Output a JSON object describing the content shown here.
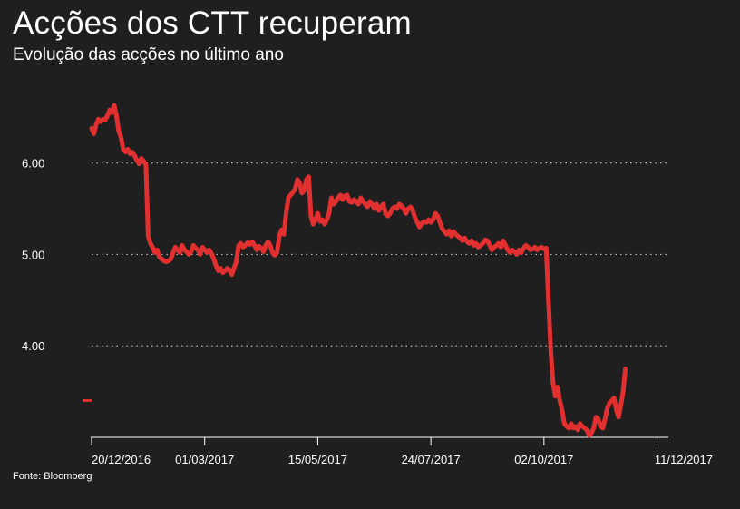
{
  "chart_data": {
    "type": "line",
    "title": "Acções dos CTT recuperam",
    "subtitle": "Evolução das acções no último ano",
    "source": "Fonte: Bloomberg",
    "ylim": [
      3.0,
      6.85
    ],
    "yticks": [
      {
        "value": 4.0,
        "label": "4.00"
      },
      {
        "value": 5.0,
        "label": "5.00"
      },
      {
        "value": 6.0,
        "label": "6.00"
      }
    ],
    "xticks": [
      {
        "index": 0,
        "label": "20/12/2016"
      },
      {
        "index": 50,
        "label": "01/03/2017"
      },
      {
        "index": 100,
        "label": "15/05/2017"
      },
      {
        "index": 150,
        "label": "24/07/2017"
      },
      {
        "index": 200,
        "label": "02/10/2017"
      },
      {
        "index": 250,
        "label": "11/12/2017"
      }
    ],
    "x_index_max": 255,
    "last_value": 3.75,
    "grid": true,
    "colors": {
      "line": "#e23030",
      "background": "#1f1f1f",
      "text": "#ffffff",
      "grid": "#bdbdbd"
    },
    "series": [
      {
        "points": [
          [
            0,
            6.38
          ],
          [
            1,
            6.32
          ],
          [
            2,
            6.42
          ],
          [
            3,
            6.48
          ],
          [
            4,
            6.45
          ],
          [
            5,
            6.48
          ],
          [
            6,
            6.47
          ],
          [
            7,
            6.52
          ],
          [
            8,
            6.58
          ],
          [
            9,
            6.55
          ],
          [
            10,
            6.63
          ],
          [
            11,
            6.52
          ],
          [
            12,
            6.35
          ],
          [
            13,
            6.28
          ],
          [
            14,
            6.15
          ],
          [
            15,
            6.12
          ],
          [
            16,
            6.15
          ],
          [
            17,
            6.1
          ],
          [
            18,
            6.12
          ],
          [
            19,
            6.08
          ],
          [
            20,
            6.03
          ],
          [
            21,
            5.99
          ],
          [
            22,
            6.05
          ],
          [
            23,
            6.02
          ],
          [
            24,
            5.98
          ],
          [
            25,
            5.2
          ],
          [
            26,
            5.12
          ],
          [
            27,
            5.08
          ],
          [
            28,
            5.02
          ],
          [
            29,
            5.05
          ],
          [
            30,
            4.97
          ],
          [
            31,
            4.95
          ],
          [
            32,
            4.93
          ],
          [
            33,
            4.92
          ],
          [
            34,
            4.93
          ],
          [
            35,
            4.95
          ],
          [
            36,
            5.02
          ],
          [
            37,
            5.08
          ],
          [
            38,
            5.05
          ],
          [
            39,
            5.02
          ],
          [
            40,
            5.1
          ],
          [
            41,
            5.05
          ],
          [
            42,
            5.03
          ],
          [
            43,
            5.0
          ],
          [
            44,
            5.03
          ],
          [
            45,
            5.1
          ],
          [
            46,
            5.07
          ],
          [
            47,
            5.05
          ],
          [
            48,
            5.0
          ],
          [
            49,
            5.08
          ],
          [
            50,
            5.05
          ],
          [
            51,
            5.02
          ],
          [
            52,
            5.05
          ],
          [
            53,
            5.01
          ],
          [
            54,
            4.95
          ],
          [
            55,
            4.88
          ],
          [
            56,
            4.82
          ],
          [
            57,
            4.85
          ],
          [
            58,
            4.8
          ],
          [
            59,
            4.82
          ],
          [
            60,
            4.85
          ],
          [
            61,
            4.83
          ],
          [
            62,
            4.78
          ],
          [
            63,
            4.85
          ],
          [
            64,
            4.92
          ],
          [
            65,
            5.1
          ],
          [
            66,
            5.12
          ],
          [
            67,
            5.08
          ],
          [
            68,
            5.1
          ],
          [
            69,
            5.13
          ],
          [
            70,
            5.11
          ],
          [
            71,
            5.14
          ],
          [
            72,
            5.1
          ],
          [
            73,
            5.05
          ],
          [
            74,
            5.09
          ],
          [
            75,
            5.07
          ],
          [
            76,
            5.03
          ],
          [
            77,
            5.1
          ],
          [
            78,
            5.14
          ],
          [
            79,
            5.1
          ],
          [
            80,
            5.02
          ],
          [
            81,
            4.99
          ],
          [
            82,
            5.02
          ],
          [
            83,
            5.2
          ],
          [
            84,
            5.27
          ],
          [
            85,
            5.22
          ],
          [
            86,
            5.45
          ],
          [
            87,
            5.62
          ],
          [
            88,
            5.65
          ],
          [
            89,
            5.68
          ],
          [
            90,
            5.72
          ],
          [
            91,
            5.82
          ],
          [
            92,
            5.78
          ],
          [
            93,
            5.67
          ],
          [
            94,
            5.7
          ],
          [
            95,
            5.82
          ],
          [
            96,
            5.85
          ],
          [
            97,
            5.42
          ],
          [
            98,
            5.33
          ],
          [
            99,
            5.38
          ],
          [
            100,
            5.45
          ],
          [
            101,
            5.36
          ],
          [
            102,
            5.38
          ],
          [
            103,
            5.33
          ],
          [
            104,
            5.38
          ],
          [
            105,
            5.45
          ],
          [
            106,
            5.62
          ],
          [
            107,
            5.55
          ],
          [
            108,
            5.58
          ],
          [
            109,
            5.62
          ],
          [
            110,
            5.65
          ],
          [
            111,
            5.6
          ],
          [
            112,
            5.64
          ],
          [
            113,
            5.65
          ],
          [
            114,
            5.58
          ],
          [
            115,
            5.57
          ],
          [
            116,
            5.6
          ],
          [
            117,
            5.58
          ],
          [
            118,
            5.55
          ],
          [
            119,
            5.62
          ],
          [
            120,
            5.58
          ],
          [
            121,
            5.55
          ],
          [
            122,
            5.52
          ],
          [
            123,
            5.58
          ],
          [
            124,
            5.55
          ],
          [
            125,
            5.5
          ],
          [
            126,
            5.55
          ],
          [
            127,
            5.48
          ],
          [
            128,
            5.52
          ],
          [
            129,
            5.55
          ],
          [
            130,
            5.44
          ],
          [
            131,
            5.42
          ],
          [
            132,
            5.45
          ],
          [
            133,
            5.5
          ],
          [
            134,
            5.52
          ],
          [
            135,
            5.5
          ],
          [
            136,
            5.55
          ],
          [
            137,
            5.53
          ],
          [
            138,
            5.5
          ],
          [
            139,
            5.45
          ],
          [
            140,
            5.5
          ],
          [
            141,
            5.52
          ],
          [
            142,
            5.48
          ],
          [
            143,
            5.4
          ],
          [
            144,
            5.35
          ],
          [
            145,
            5.3
          ],
          [
            146,
            5.34
          ],
          [
            147,
            5.36
          ],
          [
            148,
            5.35
          ],
          [
            149,
            5.38
          ],
          [
            150,
            5.35
          ],
          [
            151,
            5.38
          ],
          [
            152,
            5.45
          ],
          [
            153,
            5.42
          ],
          [
            154,
            5.35
          ],
          [
            155,
            5.28
          ],
          [
            156,
            5.25
          ],
          [
            157,
            5.22
          ],
          [
            158,
            5.26
          ],
          [
            159,
            5.2
          ],
          [
            160,
            5.25
          ],
          [
            161,
            5.22
          ],
          [
            162,
            5.2
          ],
          [
            163,
            5.18
          ],
          [
            164,
            5.15
          ],
          [
            165,
            5.18
          ],
          [
            166,
            5.14
          ],
          [
            167,
            5.12
          ],
          [
            168,
            5.15
          ],
          [
            169,
            5.1
          ],
          [
            170,
            5.12
          ],
          [
            171,
            5.08
          ],
          [
            172,
            5.1
          ],
          [
            173,
            5.12
          ],
          [
            174,
            5.16
          ],
          [
            175,
            5.15
          ],
          [
            176,
            5.1
          ],
          [
            177,
            5.05
          ],
          [
            178,
            5.08
          ],
          [
            179,
            5.1
          ],
          [
            180,
            5.12
          ],
          [
            181,
            5.08
          ],
          [
            182,
            5.15
          ],
          [
            183,
            5.1
          ],
          [
            184,
            5.05
          ],
          [
            185,
            5.02
          ],
          [
            186,
            5.05
          ],
          [
            187,
            5.03
          ],
          [
            188,
            5.0
          ],
          [
            189,
            5.05
          ],
          [
            190,
            5.02
          ],
          [
            191,
            5.07
          ],
          [
            192,
            5.1
          ],
          [
            193,
            5.08
          ],
          [
            194,
            5.05
          ],
          [
            195,
            5.06
          ],
          [
            196,
            5.08
          ],
          [
            197,
            5.05
          ],
          [
            198,
            5.07
          ],
          [
            199,
            5.08
          ],
          [
            200,
            5.06
          ],
          [
            201,
            5.07
          ],
          [
            202,
            4.5
          ],
          [
            203,
            3.95
          ],
          [
            204,
            3.6
          ],
          [
            205,
            3.45
          ],
          [
            206,
            3.55
          ],
          [
            207,
            3.4
          ],
          [
            208,
            3.3
          ],
          [
            209,
            3.15
          ],
          [
            210,
            3.12
          ],
          [
            211,
            3.1
          ],
          [
            212,
            3.15
          ],
          [
            213,
            3.1
          ],
          [
            214,
            3.12
          ],
          [
            215,
            3.08
          ],
          [
            216,
            3.15
          ],
          [
            217,
            3.12
          ],
          [
            218,
            3.1
          ],
          [
            219,
            3.08
          ],
          [
            220,
            3.02
          ],
          [
            221,
            3.05
          ],
          [
            222,
            3.1
          ],
          [
            223,
            3.22
          ],
          [
            224,
            3.2
          ],
          [
            225,
            3.12
          ],
          [
            226,
            3.1
          ],
          [
            227,
            3.2
          ],
          [
            228,
            3.32
          ],
          [
            229,
            3.38
          ],
          [
            230,
            3.4
          ],
          [
            231,
            3.43
          ],
          [
            232,
            3.3
          ],
          [
            233,
            3.22
          ],
          [
            234,
            3.35
          ],
          [
            235,
            3.5
          ],
          [
            236,
            3.75
          ]
        ]
      }
    ]
  }
}
